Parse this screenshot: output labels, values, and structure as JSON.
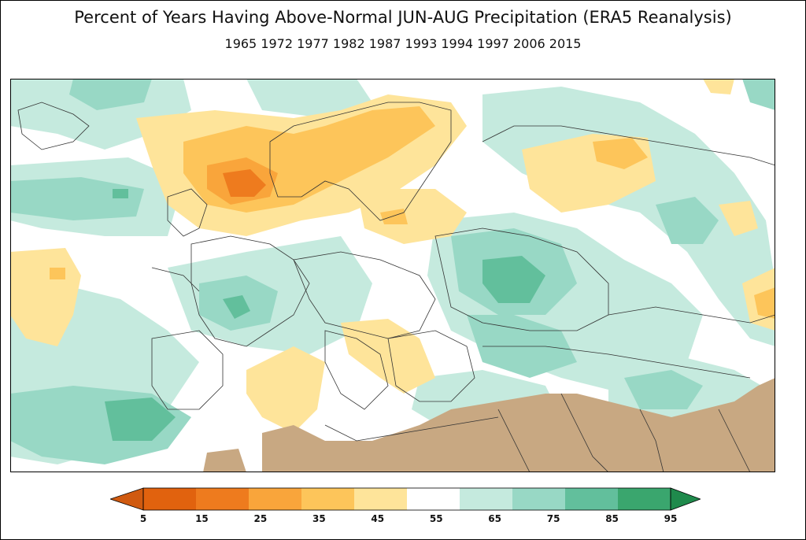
{
  "header": {
    "title": "Percent of Years Having Above-Normal JUN-AUG Precipitation (ERA5 Reanalysis)",
    "years": "1965 1972 1977 1982 1987 1993 1994 1997 2006 2015"
  },
  "legend": {
    "ticks": [
      "5",
      "15",
      "25",
      "35",
      "45",
      "55",
      "65",
      "75",
      "85",
      "95"
    ],
    "colors": [
      "#e1620e",
      "#ee7b1e",
      "#f9a53b",
      "#fdc55a",
      "#fee49a",
      "#ffffff",
      "#c5eade",
      "#98d8c5",
      "#62bf9c",
      "#3aa66e"
    ],
    "under_color": "#d05a10",
    "over_color": "#1f8a4c"
  },
  "map_colors": {
    "ocean_land_background": "#ffffff",
    "dry_mask": "#c8a882",
    "border_lines": "#333333"
  }
}
